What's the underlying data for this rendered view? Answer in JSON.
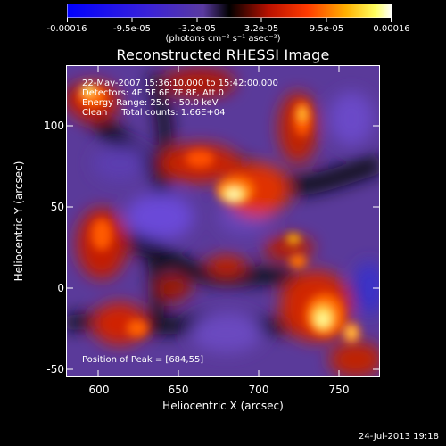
{
  "colorbar": {
    "ticks": [
      "-0.00016",
      "-9.5e-05",
      "-3.2e-05",
      "3.2e-05",
      "9.5e-05",
      "0.00016"
    ],
    "units": "(photons cm⁻² s⁻¹ asec⁻²)"
  },
  "title": "Reconstructed RHESSI Image",
  "info": {
    "time": "22-May-2007 15:36:10.000 to 15:42:00.000",
    "detectors": "Detectors: 4F 5F 6F 7F 8F, Att 0",
    "energy": "Energy Range: 25.0 - 50.0 keV",
    "method": "Clean     Total counts: 1.66E+04",
    "peak": "Position of Peak = [684,55]"
  },
  "axes": {
    "xlabel": "Heliocentric X (arcsec)",
    "ylabel": "Heliocentric Y (arcsec)",
    "xticks": [
      "600",
      "650",
      "700",
      "750"
    ],
    "yticks": [
      "100",
      "50",
      "0",
      "-50"
    ]
  },
  "timestamp": "24-Jul-2013 19:18"
}
